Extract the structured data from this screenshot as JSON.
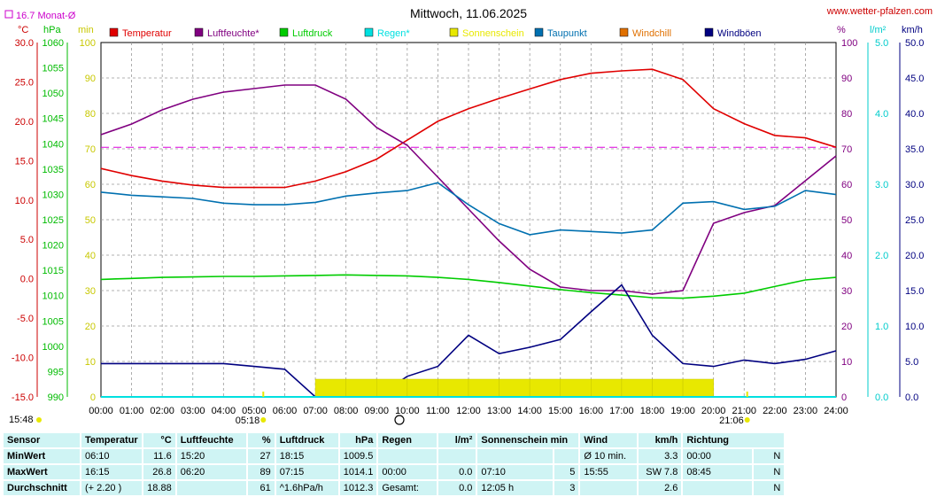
{
  "title": "Mittwoch, 11.06.2025",
  "site": "www.wetter-pfalzen.com",
  "monthly_avg_label": "16.7 Monat-Ø",
  "units": {
    "temp": "°C",
    "press": "hPa",
    "min": "min",
    "pct": "%",
    "rain": "l/m²",
    "wind": "km/h"
  },
  "legend": [
    {
      "label": "Temperatur",
      "color": "#e00000"
    },
    {
      "label": "Luftfeuchte*",
      "color": "#800080"
    },
    {
      "label": "Luftdruck",
      "color": "#00cc00"
    },
    {
      "label": "Regen*",
      "color": "#00e0e0"
    },
    {
      "label": "Sonnenschein",
      "color": "#e8e800"
    },
    {
      "label": "Taupunkt",
      "color": "#0070b0"
    },
    {
      "label": "Windchill",
      "color": "#e07000"
    },
    {
      "label": "Windböen",
      "color": "#000080"
    }
  ],
  "axes": {
    "temp": [
      "30.0",
      "25.0",
      "20.0",
      "15.0",
      "10.0",
      "5.0",
      "0.0",
      "-5.0",
      "-10.0",
      "-15.0"
    ],
    "press": [
      "1060",
      "1055",
      "1050",
      "1045",
      "1040",
      "1035",
      "1030",
      "1025",
      "1020",
      "1015",
      "1010",
      "1005",
      "1000",
      "995",
      "990"
    ],
    "sun_min": [
      "100",
      "90",
      "80",
      "70",
      "60",
      "50",
      "40",
      "30",
      "20",
      "10",
      "0"
    ],
    "pct": [
      "100",
      "90",
      "80",
      "70",
      "60",
      "50",
      "40",
      "30",
      "20",
      "10",
      "0"
    ],
    "rain": [
      "5.0",
      "4.0",
      "3.0",
      "2.0",
      "1.0",
      "0.0"
    ],
    "wind": [
      "50.0",
      "45.0",
      "40.0",
      "35.0",
      "30.0",
      "25.0",
      "20.0",
      "15.0",
      "10.0",
      "5.0",
      "0.0"
    ],
    "hours": [
      "00:00",
      "01:00",
      "02:00",
      "03:00",
      "04:00",
      "05:00",
      "06:00",
      "07:00",
      "08:00",
      "09:00",
      "10:00",
      "11:00",
      "12:00",
      "13:00",
      "14:00",
      "15:00",
      "16:00",
      "17:00",
      "18:00",
      "19:00",
      "20:00",
      "21:00",
      "22:00",
      "23:00",
      "24:00"
    ]
  },
  "markers": {
    "sunrise_left": "15:48",
    "sunrise": "05:18",
    "sunset": "21:06"
  },
  "chart_data": {
    "type": "line",
    "title": "Mittwoch, 11.06.2025",
    "x_range_hours": [
      0,
      24
    ],
    "monthly_avg_temp": 16.7,
    "series": [
      {
        "name": "Temperatur",
        "axis": "°C",
        "color": "#e00000",
        "x": [
          0,
          1,
          2,
          3,
          4,
          5,
          6,
          7,
          8,
          9,
          10,
          11,
          12,
          13,
          14,
          15,
          16,
          17,
          18,
          19,
          20,
          21,
          22,
          23,
          24
        ],
        "values": [
          14.0,
          13.1,
          12.4,
          11.9,
          11.6,
          11.6,
          11.6,
          12.4,
          13.6,
          15.2,
          17.6,
          20.0,
          21.6,
          22.9,
          24.1,
          25.3,
          26.1,
          26.4,
          26.6,
          25.3,
          21.6,
          19.7,
          18.2,
          17.9,
          16.7
        ]
      },
      {
        "name": "Luftfeuchte*",
        "axis": "%",
        "color": "#800080",
        "x": [
          0,
          1,
          2,
          3,
          4,
          5,
          6,
          7,
          8,
          9,
          10,
          11,
          12,
          13,
          14,
          15,
          16,
          17,
          18,
          19,
          20,
          21,
          22,
          23,
          24
        ],
        "values": [
          74,
          77,
          81,
          84,
          86,
          87,
          88,
          88,
          84,
          76,
          71,
          62,
          53,
          44,
          36,
          31,
          30,
          30,
          29,
          30,
          49,
          52,
          54,
          61,
          68
        ]
      },
      {
        "name": "Luftdruck",
        "axis": "hPa",
        "color": "#00cc00",
        "x": [
          0,
          1,
          2,
          3,
          4,
          5,
          6,
          7,
          8,
          9,
          10,
          11,
          12,
          13,
          14,
          15,
          16,
          17,
          18,
          19,
          20,
          21,
          22,
          23,
          24
        ],
        "values": [
          1013.2,
          1013.4,
          1013.6,
          1013.7,
          1013.8,
          1013.8,
          1013.9,
          1014.0,
          1014.1,
          1014.0,
          1013.9,
          1013.6,
          1013.2,
          1012.6,
          1011.9,
          1011.2,
          1010.6,
          1010.1,
          1009.6,
          1009.5,
          1009.9,
          1010.5,
          1011.8,
          1013.1,
          1013.6
        ]
      },
      {
        "name": "Taupunkt",
        "axis": "°C",
        "color": "#0070b0",
        "x": [
          0,
          1,
          2,
          3,
          4,
          5,
          6,
          7,
          8,
          9,
          10,
          11,
          12,
          13,
          14,
          15,
          16,
          17,
          18,
          19,
          20,
          21,
          22,
          23,
          24
        ],
        "values": [
          11.0,
          10.6,
          10.4,
          10.2,
          9.6,
          9.4,
          9.4,
          9.7,
          10.5,
          10.9,
          11.2,
          12.2,
          9.4,
          7.0,
          5.6,
          6.2,
          6.0,
          5.8,
          6.2,
          9.6,
          9.8,
          8.8,
          9.2,
          11.2,
          10.7
        ]
      },
      {
        "name": "Windböen",
        "axis": "km/h",
        "color": "#000080",
        "x": [
          0,
          1,
          2,
          3,
          4,
          5,
          6,
          7,
          8,
          9,
          10,
          11,
          12,
          13,
          14,
          15,
          16,
          17,
          18,
          19,
          20,
          21,
          22,
          23,
          24
        ],
        "values": [
          4.7,
          4.7,
          4.7,
          4.7,
          4.7,
          4.3,
          3.9,
          0.0,
          0.0,
          0.0,
          2.9,
          4.3,
          8.7,
          6.1,
          7.0,
          8.1,
          12.0,
          15.8,
          8.7,
          4.7,
          4.3,
          5.2,
          4.7,
          5.3,
          6.5
        ]
      },
      {
        "name": "Sonnenschein",
        "axis": "min",
        "color": "#e8e800",
        "x": [
          0,
          1,
          2,
          3,
          4,
          5,
          6,
          7,
          8,
          9,
          10,
          11,
          12,
          13,
          14,
          15,
          16,
          17,
          18,
          19,
          20,
          21,
          22,
          23,
          24
        ],
        "values": [
          0,
          0,
          0,
          0,
          0,
          0,
          0,
          5,
          5,
          5,
          5,
          5,
          5,
          5,
          5,
          5,
          5,
          5,
          5,
          5,
          0,
          0,
          0,
          0,
          0
        ]
      },
      {
        "name": "Regen*",
        "axis": "l/m²",
        "color": "#00e0e0",
        "x": [
          0,
          24
        ],
        "values": [
          0,
          0
        ]
      }
    ]
  },
  "table": {
    "headers": [
      "Sensor",
      "Temperatur",
      "°C",
      "Luftfeuchte",
      "%",
      "Luftdruck",
      "hPa",
      "Regen",
      "l/m²",
      "Sonnenschein min",
      "Wind",
      "km/h",
      "Richtung"
    ],
    "rows": [
      [
        "MinWert",
        "06:10",
        "11.6",
        "15:20",
        "27",
        "18:15",
        "1009.5",
        "",
        "",
        "",
        "",
        "Ø 10 min.",
        "3.3",
        "00:00",
        "N"
      ],
      [
        "MaxWert",
        "16:15",
        "26.8",
        "06:20",
        "89",
        "07:15",
        "1014.1",
        "00:00",
        "0.0",
        "07:10",
        "5",
        "15:55",
        "SW 7.8",
        "08:45",
        "N"
      ],
      [
        "Durchschnitt",
        "(+ 2.20 )",
        "18.88",
        "",
        "61",
        "^1.6hPa/h",
        "1012.3",
        "Gesamt:",
        "0.0",
        "12:05 h",
        "3",
        "",
        "2.6",
        "",
        "N"
      ]
    ]
  }
}
